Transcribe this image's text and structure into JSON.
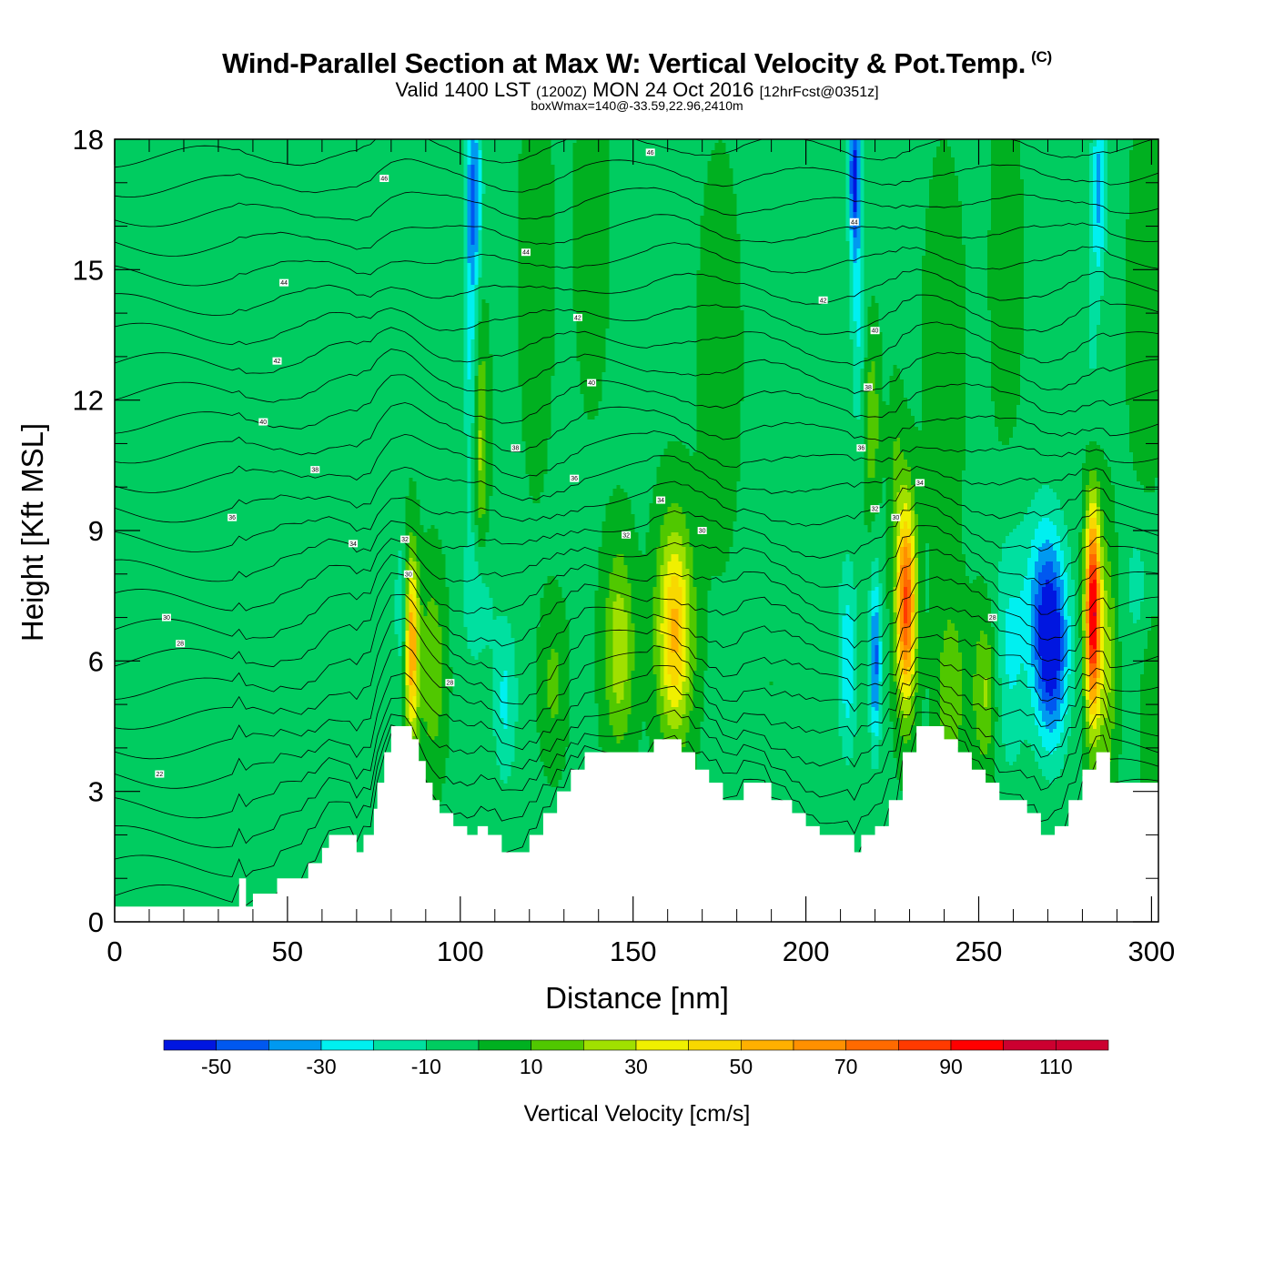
{
  "title": {
    "main": "Wind-Parallel Section at Max W: Vertical Velocity & Pot.Temp.",
    "copyright": "(C)",
    "valid_prefix": "Valid 1400 LST",
    "valid_utc": "(1200Z)",
    "valid_date": "MON 24 Oct 2016",
    "forecast": "[12hrFcst@0351z]",
    "box_info": "boxWmax=140@-33.59,22.96,2410m"
  },
  "chart_data": {
    "type": "heatmap",
    "xlabel": "Distance [nm]",
    "ylabel": "Height [Kft MSL]",
    "xlim": [
      0,
      302
    ],
    "ylim": [
      0,
      18
    ],
    "x_ticks": [
      0,
      50,
      100,
      150,
      200,
      250,
      300
    ],
    "y_ticks": [
      0,
      3,
      6,
      9,
      12,
      15,
      18
    ],
    "colorbar": {
      "title": "Vertical Velocity [cm/s]",
      "levels": [
        -60,
        -50,
        -40,
        -30,
        -20,
        -10,
        0,
        10,
        20,
        30,
        40,
        50,
        60,
        70,
        80,
        90,
        100,
        110,
        120
      ],
      "colors": [
        "#0016e0",
        "#0058f0",
        "#0099f0",
        "#00f0f0",
        "#00e0a0",
        "#00cc60",
        "#00b020",
        "#50c800",
        "#a0e000",
        "#f0f000",
        "#f8d800",
        "#ffb000",
        "#ff9000",
        "#ff6a00",
        "#ff3a00",
        "#ff0000",
        "#cc0030",
        "#cc0030"
      ],
      "tick_labels": [
        "-50",
        "-30",
        "-10",
        "10",
        "30",
        "50",
        "70",
        "90",
        "110"
      ]
    },
    "background_color": "#00e0a0",
    "terrain": {
      "x": [
        0,
        33,
        36,
        38,
        40,
        44,
        47,
        52,
        56,
        60,
        62,
        70,
        72,
        75,
        76,
        78,
        80,
        83,
        86,
        88,
        90,
        92,
        94,
        96,
        98,
        100,
        102,
        105,
        108,
        112,
        117,
        120,
        124,
        128,
        132,
        136,
        142,
        150,
        156,
        160,
        164,
        168,
        172,
        176,
        182,
        190,
        196,
        200,
        204,
        212,
        214,
        216,
        220,
        224,
        228,
        232,
        236,
        240,
        244,
        248,
        252,
        256,
        260,
        264,
        268,
        272,
        276,
        280,
        284,
        288,
        296,
        302
      ],
      "y": [
        0.35,
        0.35,
        1.0,
        0.35,
        0.65,
        0.65,
        1.0,
        1.0,
        1.35,
        1.7,
        2.0,
        1.6,
        2.0,
        2.6,
        3.2,
        3.9,
        4.5,
        4.5,
        4.2,
        3.7,
        3.2,
        2.8,
        2.5,
        2.5,
        2.2,
        2.2,
        2.0,
        2.2,
        2.0,
        1.6,
        1.6,
        2.0,
        2.5,
        3.0,
        3.5,
        3.9,
        3.9,
        3.9,
        4.2,
        4.2,
        3.9,
        3.5,
        3.2,
        2.8,
        3.2,
        2.8,
        2.5,
        2.2,
        2.0,
        2.0,
        1.6,
        2.0,
        2.2,
        2.8,
        3.9,
        4.5,
        4.5,
        4.2,
        3.9,
        3.5,
        3.2,
        2.8,
        2.8,
        2.5,
        2.0,
        2.2,
        2.8,
        3.5,
        3.9,
        3.2,
        3.2,
        3.2
      ]
    },
    "anomalies": [
      {
        "x": 8,
        "y": 13,
        "w": 0.012,
        "sx": 5,
        "sy": 5
      },
      {
        "x": 28,
        "y": 16,
        "w": 0.012,
        "sx": 4,
        "sy": 4
      },
      {
        "x": 48,
        "y": 14,
        "w": 0.01,
        "sx": 4,
        "sy": 3
      },
      {
        "x": 62,
        "y": 11,
        "w": 0.01,
        "sx": 5,
        "sy": 2.5
      },
      {
        "x": 72,
        "y": 7.5,
        "w": 0.01,
        "sx": 4,
        "sy": 2
      },
      {
        "x": 66,
        "y": 4.5,
        "w": 0.012,
        "sx": 4,
        "sy": 1.5
      },
      {
        "x": 86,
        "y": 6.3,
        "w": 0.62,
        "sx": 1.4,
        "sy": 1.5
      },
      {
        "x": 83,
        "y": 7.2,
        "w": -0.18,
        "sx": 1.3,
        "sy": 1.2
      },
      {
        "x": 92,
        "y": 5.8,
        "w": 0.22,
        "sx": 2.5,
        "sy": 1.5
      },
      {
        "x": 104,
        "y": 16.8,
        "w": -0.38,
        "sx": 1.6,
        "sy": 1.6
      },
      {
        "x": 103,
        "y": 13,
        "w": -0.2,
        "sx": 1.3,
        "sy": 2.5
      },
      {
        "x": 106,
        "y": 10.8,
        "w": 0.25,
        "sx": 1.5,
        "sy": 2
      },
      {
        "x": 105,
        "y": 7.5,
        "w": -0.18,
        "sx": 3,
        "sy": 1.2
      },
      {
        "x": 113,
        "y": 5.1,
        "w": -0.2,
        "sx": 2.5,
        "sy": 1.4
      },
      {
        "x": 127,
        "y": 5.5,
        "w": 0.15,
        "sx": 2.5,
        "sy": 1.2
      },
      {
        "x": 146,
        "y": 6.3,
        "w": 0.3,
        "sx": 3,
        "sy": 1.6
      },
      {
        "x": 162,
        "y": 6.7,
        "w": 0.55,
        "sx": 3.5,
        "sy": 1.7
      },
      {
        "x": 122,
        "y": 15,
        "w": 0.1,
        "sx": 3,
        "sy": 3
      },
      {
        "x": 138,
        "y": 16,
        "w": 0.1,
        "sx": 3,
        "sy": 2.5
      },
      {
        "x": 190,
        "y": 5.5,
        "w": 0.02,
        "sx": 5,
        "sy": 2
      },
      {
        "x": 214,
        "y": 17.2,
        "w": -0.5,
        "sx": 1.2,
        "sy": 1.3
      },
      {
        "x": 215,
        "y": 14,
        "w": -0.2,
        "sx": 1.4,
        "sy": 2
      },
      {
        "x": 219,
        "y": 11.5,
        "w": 0.2,
        "sx": 1.6,
        "sy": 1.4
      },
      {
        "x": 212,
        "y": 6,
        "w": -0.25,
        "sx": 2,
        "sy": 1.6
      },
      {
        "x": 220,
        "y": 6,
        "w": -0.42,
        "sx": 1.2,
        "sy": 1.4
      },
      {
        "x": 229,
        "y": 7.3,
        "w": 0.85,
        "sx": 2,
        "sy": 1.6
      },
      {
        "x": 226,
        "y": 10.5,
        "w": 0.12,
        "sx": 1.5,
        "sy": 1.2
      },
      {
        "x": 242,
        "y": 5.3,
        "w": 0.2,
        "sx": 3,
        "sy": 1.5
      },
      {
        "x": 252,
        "y": 5.3,
        "w": 0.25,
        "sx": 2.5,
        "sy": 1.3
      },
      {
        "x": 259,
        "y": 6.3,
        "w": -0.2,
        "sx": 3.5,
        "sy": 2
      },
      {
        "x": 271,
        "y": 6.1,
        "w": -0.5,
        "sx": 3.5,
        "sy": 1.5
      },
      {
        "x": 269,
        "y": 7.6,
        "w": -0.25,
        "sx": 4,
        "sy": 1.5
      },
      {
        "x": 283,
        "y": 7.1,
        "w": 1.05,
        "sx": 1.5,
        "sy": 1.7
      },
      {
        "x": 287,
        "y": 6,
        "w": 0.25,
        "sx": 2,
        "sy": 2
      },
      {
        "x": 296,
        "y": 7.8,
        "w": -0.12,
        "sx": 3,
        "sy": 1.2
      },
      {
        "x": 285,
        "y": 17,
        "w": -0.3,
        "sx": 1.4,
        "sy": 1.5
      },
      {
        "x": 283,
        "y": 14,
        "w": -0.1,
        "sx": 1.5,
        "sy": 2.5
      },
      {
        "x": 300,
        "y": 5,
        "w": 0.12,
        "sx": 2,
        "sy": 1.5
      },
      {
        "x": 175,
        "y": 13,
        "w": 0.08,
        "sx": 4,
        "sy": 3
      },
      {
        "x": 240,
        "y": 13,
        "w": 0.08,
        "sx": 4,
        "sy": 3
      },
      {
        "x": 258,
        "y": 15,
        "w": 0.08,
        "sx": 3,
        "sy": 3
      },
      {
        "x": 298,
        "y": 14,
        "w": 0.1,
        "sx": 3,
        "sy": 3
      }
    ],
    "theta_contour_labels": [
      {
        "text": "46",
        "x": 78,
        "y": 17.1
      },
      {
        "text": "46",
        "x": 155,
        "y": 17.7
      },
      {
        "text": "44",
        "x": 119,
        "y": 15.4
      },
      {
        "text": "44",
        "x": 214,
        "y": 16.1
      },
      {
        "text": "44",
        "x": 49,
        "y": 14.7
      },
      {
        "text": "42",
        "x": 47,
        "y": 12.9
      },
      {
        "text": "42",
        "x": 134,
        "y": 13.9
      },
      {
        "text": "42",
        "x": 205,
        "y": 14.3
      },
      {
        "text": "40",
        "x": 43,
        "y": 11.5
      },
      {
        "text": "40",
        "x": 138,
        "y": 12.4
      },
      {
        "text": "40",
        "x": 220,
        "y": 13.6
      },
      {
        "text": "38",
        "x": 58,
        "y": 10.4
      },
      {
        "text": "38",
        "x": 116,
        "y": 10.9
      },
      {
        "text": "38",
        "x": 218,
        "y": 12.3
      },
      {
        "text": "36",
        "x": 34,
        "y": 9.3
      },
      {
        "text": "36",
        "x": 133,
        "y": 10.2
      },
      {
        "text": "36",
        "x": 216,
        "y": 10.9
      },
      {
        "text": "34",
        "x": 69,
        "y": 8.7
      },
      {
        "text": "34",
        "x": 158,
        "y": 9.7
      },
      {
        "text": "34",
        "x": 233,
        "y": 10.1
      },
      {
        "text": "32",
        "x": 84,
        "y": 8.8
      },
      {
        "text": "32",
        "x": 148,
        "y": 8.9
      },
      {
        "text": "32",
        "x": 220,
        "y": 9.5
      },
      {
        "text": "30",
        "x": 85,
        "y": 8.0
      },
      {
        "text": "30",
        "x": 170,
        "y": 9.0
      },
      {
        "text": "30",
        "x": 226,
        "y": 9.3
      },
      {
        "text": "30",
        "x": 15,
        "y": 7.0
      },
      {
        "text": "28",
        "x": 19,
        "y": 6.4
      },
      {
        "text": "28",
        "x": 97,
        "y": 5.5
      },
      {
        "text": "28",
        "x": 254,
        "y": 7.0
      },
      {
        "text": "22",
        "x": 13,
        "y": 3.4
      }
    ]
  }
}
